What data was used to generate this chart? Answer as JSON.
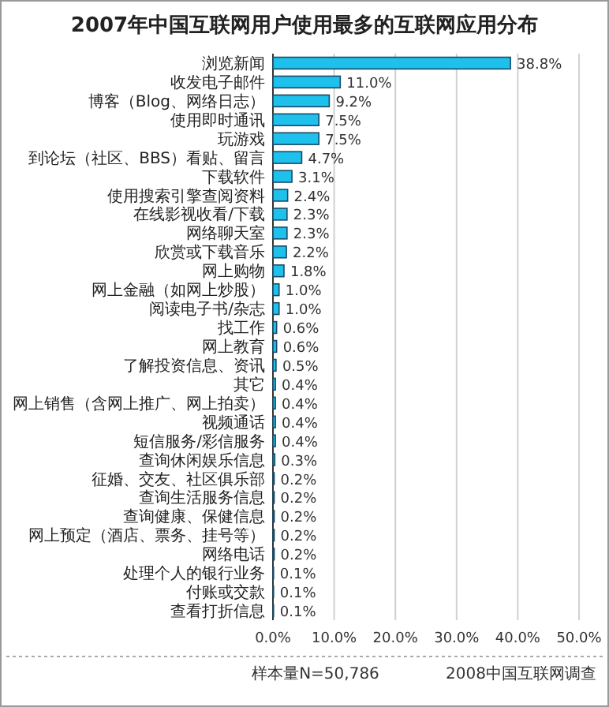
{
  "chart_data": {
    "type": "bar",
    "orientation": "horizontal",
    "title": "2007年中国互联网用户使用最多的互联网应用分布",
    "categories": [
      "浏览新闻",
      "收发电子邮件",
      "博客（Blog、网络日志）",
      "使用即时通讯",
      "玩游戏",
      "到论坛（社区、BBS）看贴、留言",
      "下载软件",
      "使用搜索引擎查阅资料",
      "在线影视收看/下载",
      "网络聊天室",
      "欣赏或下载音乐",
      "网上购物",
      "网上金融（如网上炒股）",
      "阅读电子书/杂志",
      "找工作",
      "网上教育",
      "了解投资信息、资讯",
      "其它",
      "网上销售（含网上推广、网上拍卖）",
      "视频通话",
      "短信服务/彩信服务",
      "查询休闲娱乐信息",
      "征婚、交友、社区俱乐部",
      "查询生活服务信息",
      "查询健康、保健信息",
      "网上预定（酒店、票务、挂号等）",
      "网络电话",
      "处理个人的银行业务",
      "付账或交款",
      "查看打折信息"
    ],
    "values": [
      38.8,
      11.0,
      9.2,
      7.5,
      7.5,
      4.7,
      3.1,
      2.4,
      2.3,
      2.3,
      2.2,
      1.8,
      1.0,
      1.0,
      0.6,
      0.6,
      0.5,
      0.4,
      0.4,
      0.4,
      0.4,
      0.3,
      0.2,
      0.2,
      0.2,
      0.2,
      0.2,
      0.1,
      0.1,
      0.1
    ],
    "value_labels": [
      "38.8%",
      "11.0%",
      "9.2%",
      "7.5%",
      "7.5%",
      "4.7%",
      "3.1%",
      "2.4%",
      "2.3%",
      "2.3%",
      "2.2%",
      "1.8%",
      "1.0%",
      "1.0%",
      "0.6%",
      "0.6%",
      "0.5%",
      "0.4%",
      "0.4%",
      "0.4%",
      "0.4%",
      "0.3%",
      "0.2%",
      "0.2%",
      "0.2%",
      "0.2%",
      "0.2%",
      "0.1%",
      "0.1%",
      "0.1%"
    ],
    "color": "#1ec0ec",
    "xlim": [
      0,
      50
    ],
    "xticks": [
      {
        "value": 0,
        "label": "0.0%"
      },
      {
        "value": 10,
        "label": "10.0%"
      },
      {
        "value": 20,
        "label": "20.0%"
      },
      {
        "value": 30,
        "label": "30.0%"
      },
      {
        "value": 40,
        "label": "40.0%"
      },
      {
        "value": 50,
        "label": "50.0%"
      }
    ],
    "grid": "x",
    "annotations": [
      "样本量N=50,786",
      "2008中国互联网调查"
    ]
  }
}
